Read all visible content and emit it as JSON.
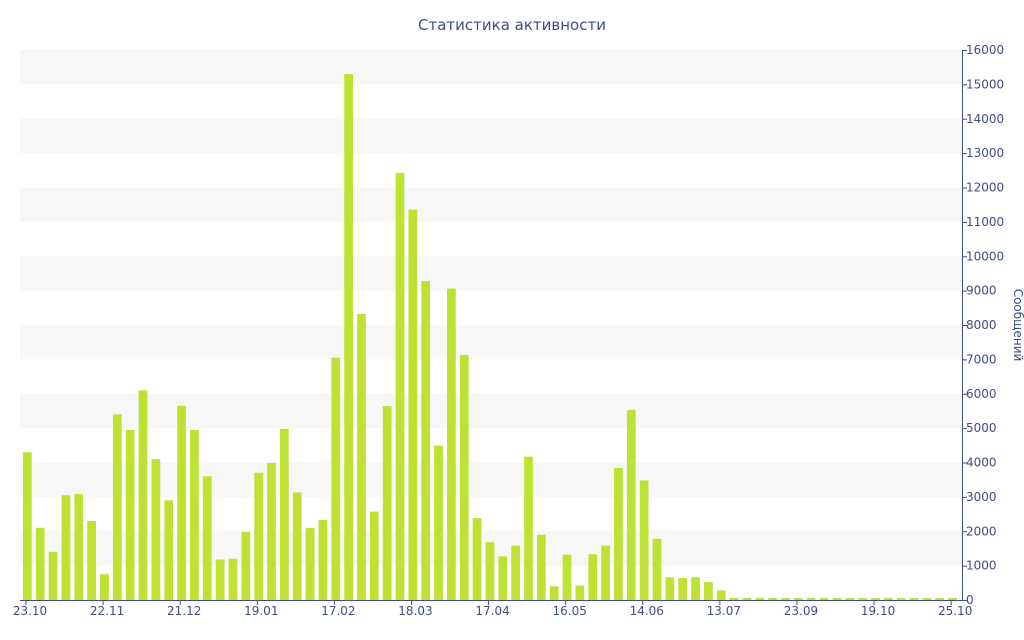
{
  "chart_data": {
    "type": "bar",
    "title": "Статистика активности",
    "ylabel": "Сообщений",
    "xlabel": "",
    "ylim": [
      0,
      16000
    ],
    "y_ticks": [
      0,
      1000,
      2000,
      3000,
      4000,
      5000,
      6000,
      7000,
      8000,
      9000,
      10000,
      11000,
      12000,
      13000,
      14000,
      15000,
      16000
    ],
    "y_axis_side": "right",
    "grid": "alternating horizontal bands",
    "bar_color": "#bde234",
    "band_color": "#f7f7f7",
    "text_color": "#3e4e82",
    "x_tick_labels": [
      {
        "label": "23.10",
        "index": 0
      },
      {
        "label": "22.11",
        "index": 6
      },
      {
        "label": "21.12",
        "index": 12
      },
      {
        "label": "19.01",
        "index": 18
      },
      {
        "label": "17.02",
        "index": 24
      },
      {
        "label": "18.03",
        "index": 30
      },
      {
        "label": "17.04",
        "index": 36
      },
      {
        "label": "16.05",
        "index": 42
      },
      {
        "label": "14.06",
        "index": 48
      },
      {
        "label": "13.07",
        "index": 54
      },
      {
        "label": "23.09",
        "index": 60
      },
      {
        "label": "19.10",
        "index": 66
      },
      {
        "label": "25.10",
        "index": 72
      }
    ],
    "values": [
      4300,
      2100,
      1400,
      3050,
      3080,
      2300,
      750,
      5400,
      4950,
      6100,
      4100,
      2900,
      5650,
      4950,
      3600,
      1180,
      1200,
      1980,
      3700,
      3990,
      4980,
      3130,
      2100,
      2330,
      7050,
      15300,
      8320,
      2570,
      5640,
      12420,
      11360,
      9280,
      4490,
      9060,
      7130,
      2380,
      1680,
      1270,
      1580,
      4170,
      1900,
      400,
      1320,
      420,
      1330,
      1580,
      3840,
      5530,
      3480,
      1780,
      660,
      640,
      660,
      520,
      280,
      60,
      60,
      60,
      60,
      60,
      60,
      60,
      60,
      60,
      60,
      60,
      60,
      60,
      60,
      60,
      60,
      60,
      60
    ]
  }
}
